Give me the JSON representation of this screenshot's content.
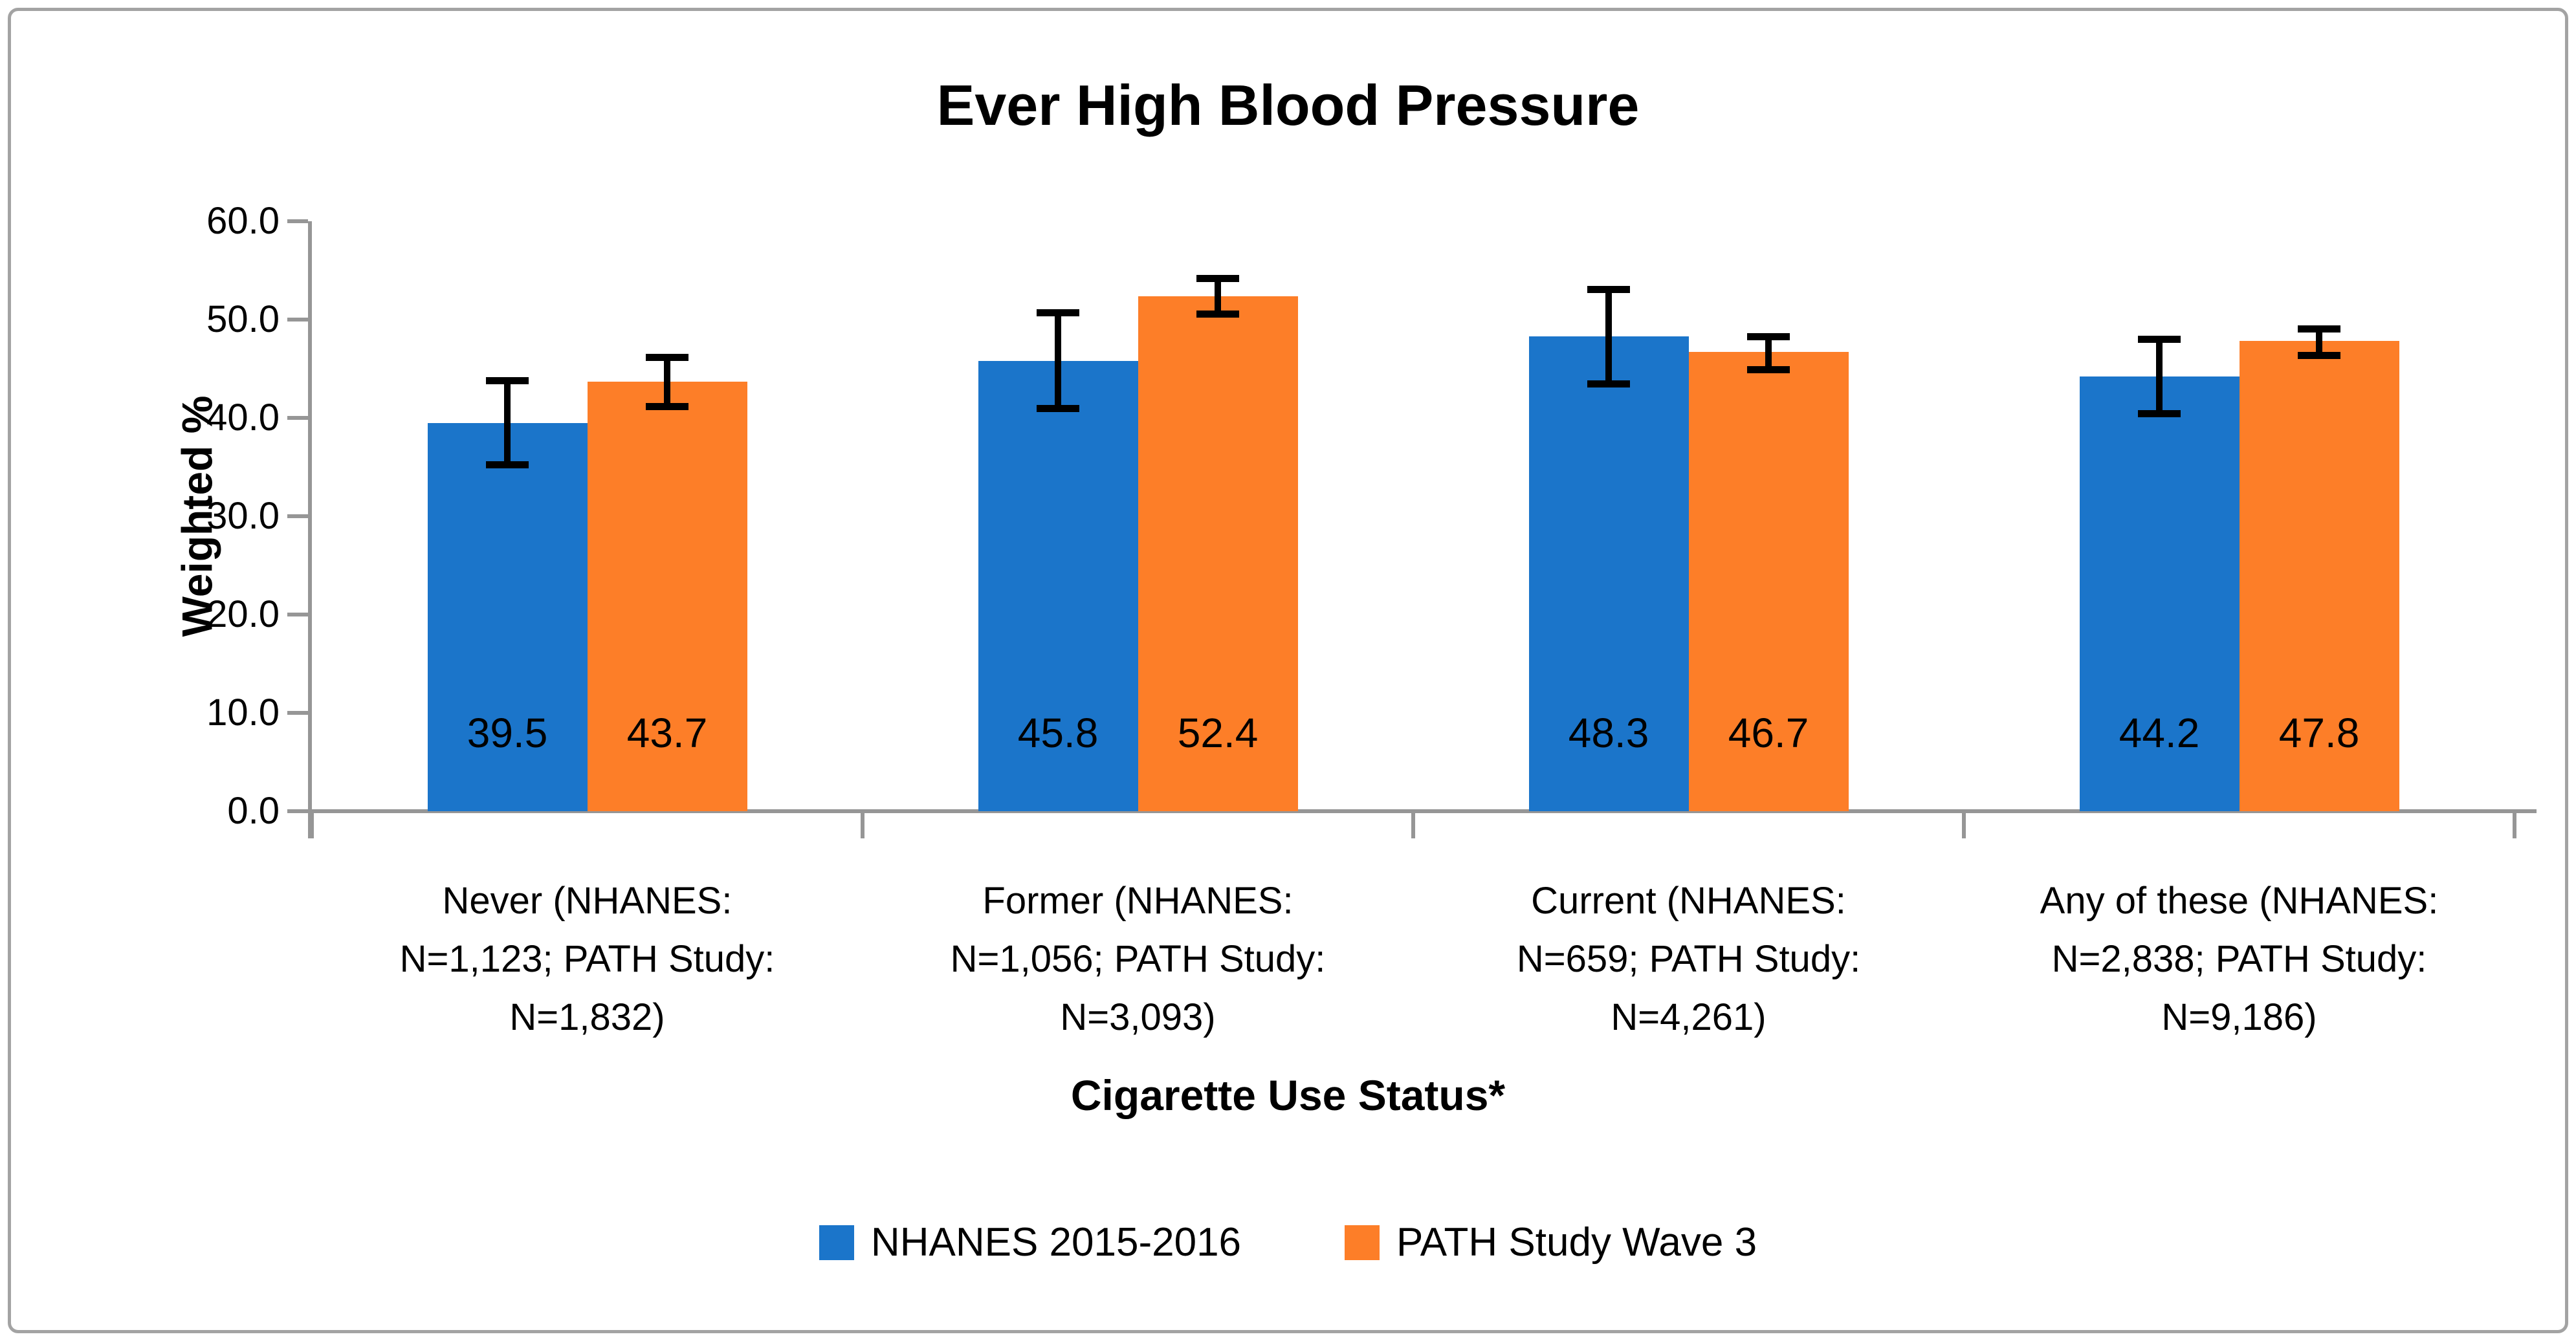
{
  "figure": {
    "title": "Ever High Blood Pressure"
  },
  "axes": {
    "y_label": "Weighted %",
    "x_label": "Cigarette Use Status*",
    "y_ticks": [
      "60.0",
      "50.0",
      "40.0",
      "30.0",
      "20.0",
      "10.0",
      "0.0"
    ],
    "axis_color": "#969696",
    "border_color": "#A3A3A3"
  },
  "legend": {
    "items": [
      {
        "label": "NHANES 2015-2016",
        "color": "#1B75CA"
      },
      {
        "label": "PATH Study Wave 3",
        "color": "#FD7E28"
      }
    ]
  },
  "chart_data": {
    "type": "bar",
    "title": "Ever High Blood Pressure",
    "xlabel": "Cigarette Use Status*",
    "ylabel": "Weighted %",
    "ylim": [
      0,
      60
    ],
    "y_tick_step": 10,
    "grid": false,
    "legend_position": "bottom",
    "error_bars": true,
    "categories": [
      {
        "lines": [
          "Never (NHANES:",
          "N=1,123; PATH Study:",
          "N=1,832)"
        ]
      },
      {
        "lines": [
          "Former (NHANES:",
          "N=1,056; PATH Study:",
          "N=3,093)"
        ]
      },
      {
        "lines": [
          "Current (NHANES:",
          "N=659; PATH Study:",
          "N=4,261)"
        ]
      },
      {
        "lines": [
          "Any of these (NHANES:",
          "N=2,838; PATH Study:",
          "N=9,186)"
        ]
      }
    ],
    "series": [
      {
        "name": "NHANES 2015-2016",
        "color": "#1B75CA",
        "values": [
          39.5,
          45.8,
          48.3,
          44.2
        ],
        "ci_low": [
          35.0,
          40.7,
          43.2,
          40.2
        ],
        "ci_high": [
          44.0,
          50.9,
          53.3,
          48.2
        ]
      },
      {
        "name": "PATH Study Wave 3",
        "color": "#FD7E28",
        "values": [
          43.7,
          52.4,
          46.7,
          47.8
        ],
        "ci_low": [
          40.9,
          50.3,
          44.7,
          46.1
        ],
        "ci_high": [
          46.4,
          54.4,
          48.5,
          49.3
        ]
      }
    ],
    "value_labels_shown_inside_bars": true
  }
}
